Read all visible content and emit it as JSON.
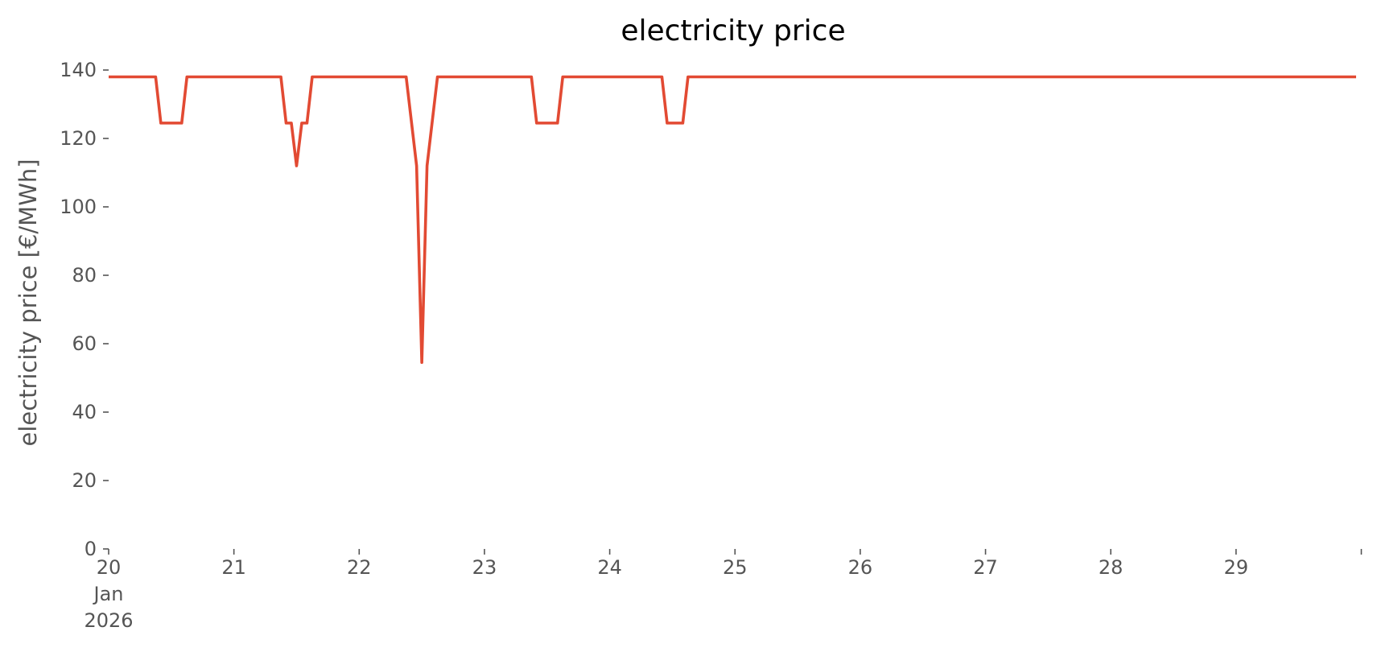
{
  "chart_data": {
    "type": "line",
    "title": "electricity price",
    "xlabel": "",
    "ylabel": "electricity price [€/MWh]",
    "ylim": [
      0,
      140
    ],
    "y_ticks": [
      0,
      20,
      40,
      60,
      80,
      100,
      120,
      140
    ],
    "xlim": [
      "2026-01-20 00:00",
      "2026-01-29 23:00"
    ],
    "x_ticks": [
      {
        "x": "2026-01-20",
        "label": "20",
        "sublabel": "Jan",
        "sublabel2": "2026"
      },
      {
        "x": "2026-01-21",
        "label": "21"
      },
      {
        "x": "2026-01-22",
        "label": "22"
      },
      {
        "x": "2026-01-23",
        "label": "23"
      },
      {
        "x": "2026-01-24",
        "label": "24"
      },
      {
        "x": "2026-01-25",
        "label": "25"
      },
      {
        "x": "2026-01-26",
        "label": "26"
      },
      {
        "x": "2026-01-27",
        "label": "27"
      },
      {
        "x": "2026-01-28",
        "label": "28"
      },
      {
        "x": "2026-01-29",
        "label": "29"
      },
      {
        "x": "2026-01-30",
        "label": ""
      }
    ],
    "grid": false,
    "series": [
      {
        "color": "#e24a33",
        "points": [
          [
            "2026-01-20 00:00",
            138
          ],
          [
            "2026-01-20 09:00",
            138
          ],
          [
            "2026-01-20 10:00",
            124.5
          ],
          [
            "2026-01-20 14:00",
            124.5
          ],
          [
            "2026-01-20 15:00",
            138
          ],
          [
            "2026-01-21 09:00",
            138
          ],
          [
            "2026-01-21 10:00",
            124.5
          ],
          [
            "2026-01-21 11:00",
            124.5
          ],
          [
            "2026-01-21 12:00",
            112
          ],
          [
            "2026-01-21 13:00",
            124.5
          ],
          [
            "2026-01-21 14:00",
            124.5
          ],
          [
            "2026-01-21 15:00",
            138
          ],
          [
            "2026-01-22 09:00",
            138
          ],
          [
            "2026-01-22 11:00",
            112
          ],
          [
            "2026-01-22 12:00",
            54.5
          ],
          [
            "2026-01-22 13:00",
            112
          ],
          [
            "2026-01-22 15:00",
            138
          ],
          [
            "2026-01-23 09:00",
            138
          ],
          [
            "2026-01-23 10:00",
            124.5
          ],
          [
            "2026-01-23 14:00",
            124.5
          ],
          [
            "2026-01-23 15:00",
            138
          ],
          [
            "2026-01-24 10:00",
            138
          ],
          [
            "2026-01-24 11:00",
            124.5
          ],
          [
            "2026-01-24 14:00",
            124.5
          ],
          [
            "2026-01-24 15:00",
            138
          ],
          [
            "2026-01-29 23:00",
            138
          ]
        ]
      }
    ]
  }
}
